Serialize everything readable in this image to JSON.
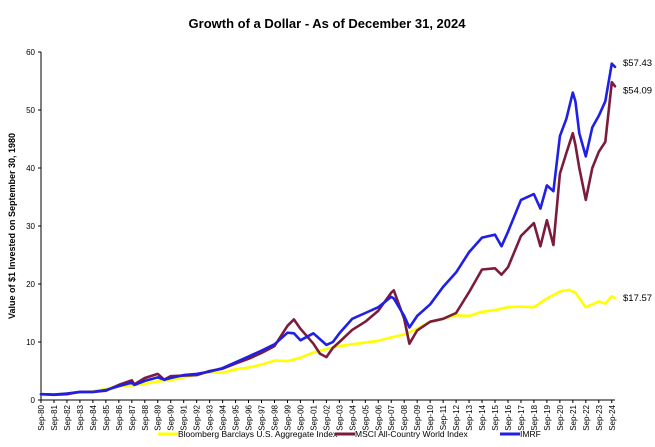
{
  "chart_data": {
    "type": "line",
    "title": "Growth of a Dollar - As of December 31, 2024",
    "ylabel": "Value of $1 Invested on September 30, 1980",
    "xlabel": "",
    "ylim": [
      0,
      60
    ],
    "yticks": [
      "0",
      "10",
      "20",
      "30",
      "40",
      "50",
      "60"
    ],
    "grid": false,
    "legend_position": "bottom",
    "categories": [
      "Sep-80",
      "Sep-81",
      "Sep-82",
      "Sep-83",
      "Sep-84",
      "Sep-85",
      "Sep-86",
      "Sep-87",
      "Sep-88",
      "Sep-89",
      "Sep-90",
      "Sep-91",
      "Sep-92",
      "Sep-93",
      "Sep-94",
      "Sep-95",
      "Sep-96",
      "Sep-97",
      "Sep-98",
      "Sep-99",
      "Sep-00",
      "Sep-01",
      "Sep-02",
      "Sep-03",
      "Sep-04",
      "Sep-05",
      "Sep-06",
      "Sep-07",
      "Sep-08",
      "Sep-09",
      "Sep-10",
      "Sep-11",
      "Sep-12",
      "Sep-13",
      "Sep-14",
      "Sep-15",
      "Sep-16",
      "Sep-17",
      "Sep-18",
      "Sep-19",
      "Sep-20",
      "Sep-21",
      "Sep-22",
      "Sep-23",
      "Sep-24"
    ],
    "series": [
      {
        "name": "Bloomberg Barclays U.S. Aggregate Index",
        "color": "#ffff00",
        "end_label": "$17.57",
        "x": [
          0,
          1,
          2,
          3,
          4,
          5,
          6,
          7,
          8,
          9,
          10,
          11,
          12,
          13,
          14,
          15,
          16,
          17,
          18,
          19,
          20,
          21,
          22,
          23,
          24,
          25,
          26,
          27,
          28,
          29,
          30,
          31,
          32,
          33,
          34,
          35,
          36,
          37,
          38,
          39,
          40,
          40.7,
          41.2,
          42,
          42.5,
          43,
          43.5,
          44,
          44.25
        ],
        "values": [
          1.0,
          0.95,
          1.1,
          1.3,
          1.5,
          1.9,
          2.4,
          2.5,
          2.8,
          3.2,
          3.4,
          3.9,
          4.4,
          4.8,
          4.7,
          5.3,
          5.6,
          6.1,
          6.8,
          6.7,
          7.3,
          8.2,
          8.8,
          9.3,
          9.6,
          9.9,
          10.2,
          10.8,
          11.3,
          12.3,
          13.5,
          14.0,
          14.6,
          14.5,
          15.2,
          15.5,
          16.0,
          16.1,
          16.0,
          17.5,
          18.7,
          19.0,
          18.5,
          16.0,
          16.5,
          17.0,
          16.6,
          17.9,
          17.57
        ]
      },
      {
        "name": "MSCI All-Country World Index",
        "color": "#7b1c3c",
        "end_label": "$54.09",
        "x": [
          0,
          1,
          2,
          3,
          4,
          5,
          6,
          7,
          7.2,
          8,
          9,
          9.5,
          10,
          11,
          12,
          13,
          14,
          15,
          16,
          17,
          18,
          19,
          19.5,
          20,
          21,
          21.5,
          22,
          22.5,
          23,
          24,
          25,
          26,
          27,
          27.2,
          28,
          28.4,
          29,
          30,
          31,
          32,
          33,
          34,
          35,
          35.5,
          36,
          37,
          38,
          38.5,
          39,
          39.5,
          40,
          40.5,
          41,
          41.2,
          41.5,
          42,
          42.5,
          43,
          43.5,
          44,
          44.25
        ],
        "values": [
          1.0,
          0.9,
          1.0,
          1.4,
          1.4,
          1.6,
          2.6,
          3.4,
          2.7,
          3.8,
          4.5,
          3.5,
          4.1,
          4.2,
          4.3,
          5.0,
          5.4,
          6.3,
          7.1,
          8.1,
          9.3,
          12.8,
          13.9,
          12.3,
          9.7,
          8.0,
          7.4,
          9.0,
          10.0,
          12.1,
          13.5,
          15.4,
          18.5,
          18.9,
          14.0,
          9.7,
          12.0,
          13.5,
          14.0,
          15.0,
          18.6,
          22.5,
          22.7,
          21.6,
          22.9,
          28.3,
          30.5,
          26.5,
          31.0,
          26.7,
          39.0,
          42.6,
          46.0,
          44.0,
          40.0,
          34.5,
          40.0,
          42.8,
          44.5,
          54.8,
          54.09
        ]
      },
      {
        "name": "IMRF",
        "color": "#1f1fe6",
        "end_label": "$57.43",
        "x": [
          0,
          1,
          2,
          3,
          4,
          5,
          6,
          7,
          7.2,
          8,
          9,
          9.5,
          10,
          11,
          12,
          13,
          14,
          15,
          16,
          17,
          18,
          19,
          19.5,
          20,
          21,
          21.5,
          22,
          22.5,
          23,
          24,
          25,
          26,
          27,
          27.2,
          28,
          28.4,
          29,
          30,
          31,
          32,
          33,
          34,
          35,
          35.5,
          36,
          37,
          38,
          38.5,
          39,
          39.5,
          40,
          40.5,
          41,
          41.2,
          41.5,
          42,
          42.5,
          43,
          43.5,
          44,
          44.25
        ],
        "values": [
          1.0,
          0.95,
          1.1,
          1.4,
          1.4,
          1.7,
          2.4,
          3.0,
          2.6,
          3.3,
          3.9,
          3.5,
          3.8,
          4.3,
          4.5,
          4.9,
          5.5,
          6.5,
          7.5,
          8.5,
          9.6,
          11.6,
          11.5,
          10.3,
          11.5,
          10.5,
          9.5,
          10.0,
          11.5,
          14.0,
          15.0,
          16.0,
          17.8,
          17.5,
          14.5,
          12.5,
          14.5,
          16.5,
          19.5,
          22.0,
          25.5,
          28.0,
          28.5,
          26.5,
          29.0,
          34.5,
          35.5,
          33.0,
          37.0,
          36.0,
          45.5,
          48.5,
          53.0,
          51.5,
          46.0,
          42.0,
          47.0,
          49.0,
          51.5,
          58.0,
          57.43
        ]
      }
    ]
  }
}
